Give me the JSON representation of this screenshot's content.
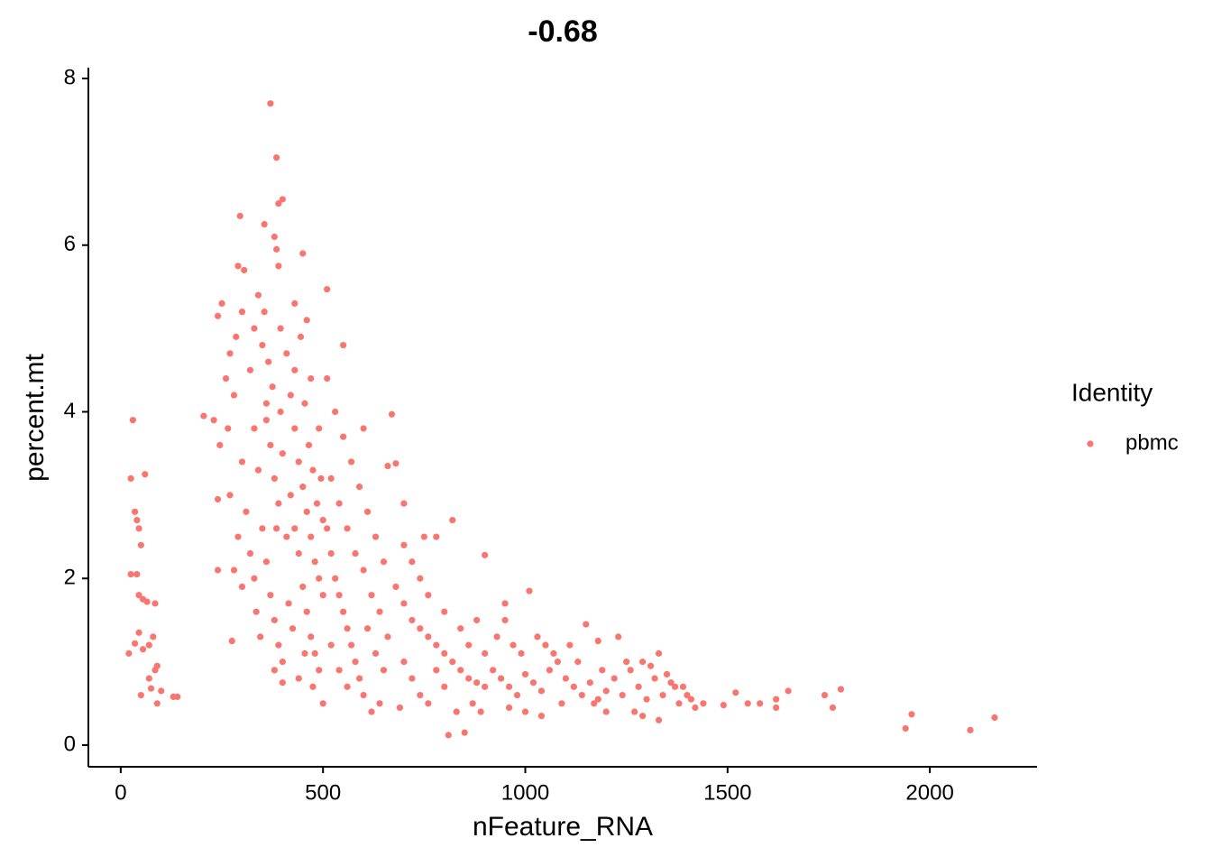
{
  "chart_data": {
    "type": "scatter",
    "title": "-0.68",
    "x_label": "nFeature_RNA",
    "y_label": "percent.mt",
    "legend_title": "Identity",
    "legend_position": "right",
    "xlim": [
      -80,
      2265
    ],
    "ylim": [
      -0.26,
      8.13
    ],
    "xticks": [
      0,
      500,
      1000,
      1500,
      2000
    ],
    "yticks": [
      0,
      2,
      4,
      6,
      8
    ],
    "grid": false,
    "series": [
      {
        "name": "pbmc",
        "color": "#F8766D",
        "x": [
          370,
          385,
          400,
          390,
          295,
          355,
          380,
          385,
          450,
          390,
          290,
          305,
          510,
          2160,
          2100,
          1955,
          1940,
          1780,
          1740,
          1760,
          1650,
          1620,
          1620,
          1580,
          1550,
          1520,
          1490,
          1440,
          30,
          25,
          60,
          35,
          40,
          45,
          50,
          25,
          40,
          45,
          55,
          65,
          85,
          45,
          35,
          20,
          55,
          70,
          80,
          90,
          85,
          70,
          100,
          50,
          90,
          140,
          130,
          75,
          240,
          250,
          260,
          270,
          280,
          265,
          245,
          240,
          270,
          290,
          280,
          240,
          300,
          285,
          300,
          275,
          205,
          230,
          300,
          310,
          320,
          330,
          340,
          350,
          360,
          370,
          380,
          390,
          330,
          340,
          350,
          360,
          370,
          380,
          390,
          400,
          335,
          345,
          355,
          365,
          375,
          395,
          400,
          320,
          330,
          380,
          400,
          395,
          360,
          385,
          410,
          420,
          430,
          440,
          450,
          460,
          470,
          480,
          490,
          500,
          420,
          430,
          440,
          450,
          460,
          470,
          480,
          490,
          430,
          445,
          455,
          465,
          475,
          485,
          495,
          500,
          415,
          425,
          455,
          475,
          500,
          440,
          410,
          470,
          490,
          430,
          460,
          510,
          520,
          530,
          540,
          550,
          560,
          570,
          580,
          590,
          600,
          520,
          540,
          560,
          580,
          600,
          620,
          640,
          510,
          530,
          550,
          570,
          590,
          610,
          630,
          650,
          520,
          540,
          560,
          610,
          630,
          650,
          620,
          660,
          670,
          640,
          550,
          600,
          660,
          680,
          680,
          700,
          720,
          740,
          760,
          780,
          800,
          820,
          840,
          860,
          880,
          900,
          700,
          720,
          740,
          760,
          780,
          800,
          820,
          840,
          860,
          880,
          900,
          700,
          720,
          740,
          760,
          780,
          800,
          810,
          850,
          830,
          870,
          890,
          900,
          700,
          750,
          690,
          920,
          940,
          960,
          980,
          1000,
          1020,
          1040,
          1060,
          1080,
          1100,
          1120,
          1140,
          1160,
          1180,
          1200,
          930,
          950,
          970,
          990,
          1010,
          1030,
          1050,
          1070,
          1090,
          1110,
          1130,
          1150,
          1170,
          1190,
          960,
          1000,
          1040,
          950,
          1200,
          1220,
          1240,
          1260,
          1280,
          1300,
          1320,
          1340,
          1360,
          1380,
          1400,
          1420,
          1230,
          1250,
          1270,
          1290,
          1310,
          1330,
          1350,
          1370,
          1390,
          1410,
          1290,
          1180,
          1330
        ],
        "values": [
          7.7,
          7.05,
          6.55,
          6.5,
          6.35,
          6.25,
          6.1,
          5.95,
          5.9,
          5.75,
          5.75,
          5.7,
          5.47,
          0.33,
          0.18,
          0.37,
          0.2,
          0.67,
          0.6,
          0.45,
          0.65,
          0.45,
          0.55,
          0.5,
          0.5,
          0.63,
          0.48,
          0.5,
          3.9,
          3.2,
          3.25,
          2.8,
          2.7,
          2.6,
          2.4,
          2.05,
          2.05,
          1.8,
          1.75,
          1.72,
          1.7,
          1.35,
          1.22,
          1.1,
          1.15,
          1.2,
          1.3,
          0.95,
          0.9,
          0.8,
          0.65,
          0.6,
          0.5,
          0.58,
          0.58,
          0.68,
          5.15,
          5.3,
          4.4,
          4.7,
          4.2,
          3.8,
          3.6,
          2.95,
          3.0,
          2.5,
          2.1,
          2.1,
          3.4,
          4.9,
          5.2,
          1.25,
          3.95,
          3.9,
          1.9,
          2.8,
          4.5,
          5.0,
          5.4,
          4.8,
          4.1,
          3.6,
          3.2,
          2.9,
          3.8,
          3.3,
          2.6,
          2.2,
          1.8,
          1.5,
          1.2,
          1.0,
          1.6,
          1.3,
          5.2,
          4.6,
          4.3,
          4.0,
          3.5,
          2.3,
          2.0,
          0.9,
          0.75,
          5.0,
          3.9,
          2.6,
          4.7,
          4.2,
          3.8,
          3.4,
          3.1,
          2.8,
          2.5,
          2.2,
          2.0,
          1.8,
          3.0,
          2.6,
          2.3,
          1.9,
          1.6,
          1.3,
          1.1,
          0.9,
          4.5,
          4.9,
          4.1,
          3.6,
          3.3,
          2.9,
          3.2,
          2.7,
          1.7,
          1.4,
          1.1,
          0.7,
          0.5,
          0.8,
          2.5,
          4.4,
          3.8,
          5.3,
          5.1,
          2.6,
          2.3,
          2.0,
          1.8,
          1.6,
          1.4,
          1.2,
          1.0,
          0.8,
          0.6,
          3.2,
          2.9,
          2.6,
          2.3,
          2.1,
          1.8,
          1.6,
          4.4,
          4.0,
          3.7,
          3.4,
          3.1,
          2.8,
          2.5,
          2.2,
          1.2,
          0.9,
          0.7,
          1.4,
          1.1,
          0.9,
          0.4,
          3.35,
          3.97,
          0.5,
          4.8,
          3.8,
          1.3,
          3.38,
          1.9,
          1.7,
          1.5,
          1.4,
          1.3,
          1.2,
          1.1,
          1.0,
          0.9,
          0.8,
          0.75,
          0.7,
          2.4,
          2.2,
          2.0,
          1.8,
          2.5,
          1.6,
          2.7,
          1.4,
          1.2,
          1.5,
          1.1,
          1.0,
          0.8,
          0.6,
          0.5,
          0.9,
          0.7,
          0.12,
          0.15,
          0.4,
          0.5,
          0.4,
          2.28,
          2.9,
          2.5,
          0.45,
          0.9,
          0.8,
          0.7,
          0.6,
          0.85,
          0.75,
          0.65,
          0.9,
          1.0,
          0.8,
          0.7,
          0.6,
          0.75,
          0.55,
          0.65,
          1.3,
          1.5,
          1.2,
          1.1,
          1.85,
          1.3,
          1.2,
          1.1,
          0.5,
          1.2,
          1.0,
          1.45,
          0.5,
          0.9,
          0.45,
          0.4,
          0.35,
          1.7,
          0.4,
          0.8,
          0.6,
          0.9,
          0.7,
          0.55,
          0.8,
          0.6,
          0.75,
          0.5,
          0.6,
          0.45,
          1.3,
          1.0,
          0.4,
          1.0,
          0.95,
          1.1,
          0.85,
          0.7,
          0.7,
          0.55,
          0.35,
          1.25,
          0.3
        ]
      }
    ]
  }
}
